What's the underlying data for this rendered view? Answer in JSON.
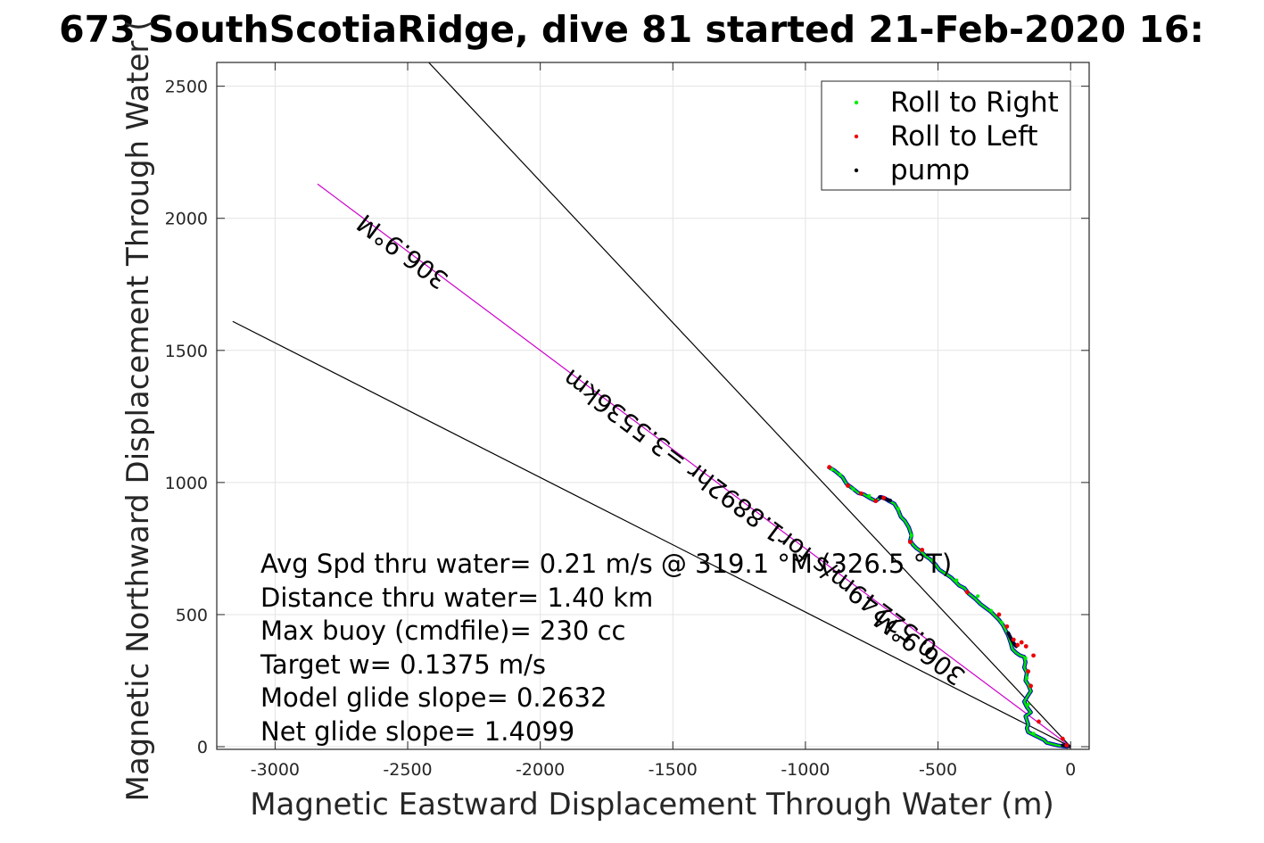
{
  "chart_data": {
    "type": "line",
    "title": "673 SouthScotiaRidge, dive 81 started 21-Feb-2020 16:",
    "xlabel": "Magnetic Eastward Displacement Through Water (m)",
    "ylabel": "Magnetic Northward Displacement Through Water (",
    "xlim": [
      -3220,
      70
    ],
    "ylim": [
      -10,
      2590
    ],
    "xticks": [
      -3000,
      -2500,
      -2000,
      -1500,
      -1000,
      -500,
      0
    ],
    "xtick_labels": [
      "-3000",
      "-2500",
      "-2000",
      "-1500",
      "-1000",
      "-500",
      "0"
    ],
    "yticks": [
      0,
      500,
      1000,
      1500,
      2000,
      2500
    ],
    "ytick_labels": [
      "0",
      "500",
      "1000",
      "1500",
      "2000",
      "2500"
    ],
    "grid": true,
    "legend_position": "top-right",
    "legend": [
      {
        "label": "Roll to Right",
        "color": "#00ee00"
      },
      {
        "label": "Roll to Left",
        "color": "#ee0000"
      },
      {
        "label": "pump",
        "color": "#000000"
      }
    ],
    "reference_lines": [
      {
        "x": [
          0,
          -2430
        ],
        "y": [
          0,
          2600
        ],
        "color": "#000000"
      },
      {
        "x": [
          0,
          -3160
        ],
        "y": [
          0,
          1610
        ],
        "color": "#000000"
      },
      {
        "x": [
          0,
          -2840
        ],
        "y": [
          0,
          2130
        ],
        "color": "#cc00cc"
      }
    ],
    "track": {
      "color": "#00dd00",
      "outline": "#0000cc",
      "x": [
        -915,
        -890,
        -860,
        -845,
        -825,
        -800,
        -780,
        -755,
        -735,
        -715,
        -700,
        -685,
        -665,
        -650,
        -640,
        -625,
        -610,
        -600,
        -605,
        -595,
        -580,
        -565,
        -545,
        -530,
        -510,
        -495,
        -480,
        -465,
        -450,
        -435,
        -420,
        -400,
        -385,
        -360,
        -340,
        -320,
        -300,
        -285,
        -270,
        -255,
        -245,
        -235,
        -225,
        -220,
        -205,
        -190,
        -175,
        -170,
        -175,
        -165,
        -170,
        -160,
        -150,
        -160,
        -175,
        -165,
        -150,
        -170,
        -165,
        -160,
        -165,
        -160,
        -140,
        -120,
        -100,
        -90,
        -70,
        -50,
        -30,
        -10
      ],
      "y": [
        1060,
        1045,
        1020,
        995,
        980,
        960,
        955,
        940,
        930,
        945,
        940,
        930,
        920,
        895,
        870,
        855,
        830,
        800,
        780,
        765,
        750,
        740,
        720,
        710,
        690,
        670,
        660,
        650,
        640,
        625,
        610,
        600,
        580,
        560,
        540,
        525,
        510,
        495,
        480,
        460,
        440,
        420,
        390,
        370,
        355,
        345,
        340,
        320,
        300,
        280,
        250,
        235,
        210,
        195,
        170,
        150,
        130,
        115,
        100,
        85,
        70,
        55,
        45,
        35,
        25,
        15,
        10,
        5,
        2,
        0
      ]
    },
    "pump_segments": [
      {
        "x": [
          -720,
          -700,
          -680
        ],
        "y": [
          945,
          938,
          932
        ]
      },
      {
        "x": [
          -235,
          -225,
          -215,
          -205
        ],
        "y": [
          430,
          410,
          392,
          380
        ]
      },
      {
        "x": [
          -30,
          -15,
          -5
        ],
        "y": [
          5,
          3,
          1
        ]
      }
    ],
    "roll_left_points": {
      "x": [
        -910,
        -840,
        -790,
        -735,
        -705,
        -605,
        -560,
        -390,
        -270,
        -240,
        -215,
        -200,
        -185,
        -168,
        -140,
        -160,
        -150,
        -120,
        -30,
        -15
      ],
      "y": [
        1058,
        988,
        958,
        930,
        942,
        775,
        745,
        585,
        500,
        455,
        405,
        385,
        395,
        380,
        345,
        285,
        230,
        95,
        30,
        5
      ]
    },
    "roll_right_points": {
      "x": [
        -900,
        -870,
        -820,
        -760,
        -650,
        -600,
        -520,
        -470,
        -430,
        -350,
        -300,
        -260,
        -170,
        -165,
        -160,
        -140
      ],
      "y": [
        1050,
        1030,
        975,
        950,
        900,
        800,
        705,
        655,
        630,
        570,
        515,
        470,
        335,
        260,
        160,
        50
      ]
    },
    "annotations": [
      {
        "text": "306.9°M",
        "x": -2500,
        "y": 1900,
        "rotation_deg": 216.9
      },
      {
        "text": "0.52249m/s for1.8892hr =3.5536km",
        "x": -1190,
        "y": 910,
        "rotation_deg": 216.9
      },
      {
        "text": "306.9°M",
        "x": -550,
        "y": 400,
        "rotation_deg": 216.9
      }
    ],
    "stats": [
      "Avg Spd thru water=  0.21 m/s @ 319.1 °M (326.5 °T)",
      "Distance thru water=  1.40 km",
      "Max buoy (cmdfile)= 230 cc",
      "Target w= 0.1375 m/s",
      "Model glide slope= 0.2632",
      "Net glide slope= 1.4099"
    ]
  }
}
